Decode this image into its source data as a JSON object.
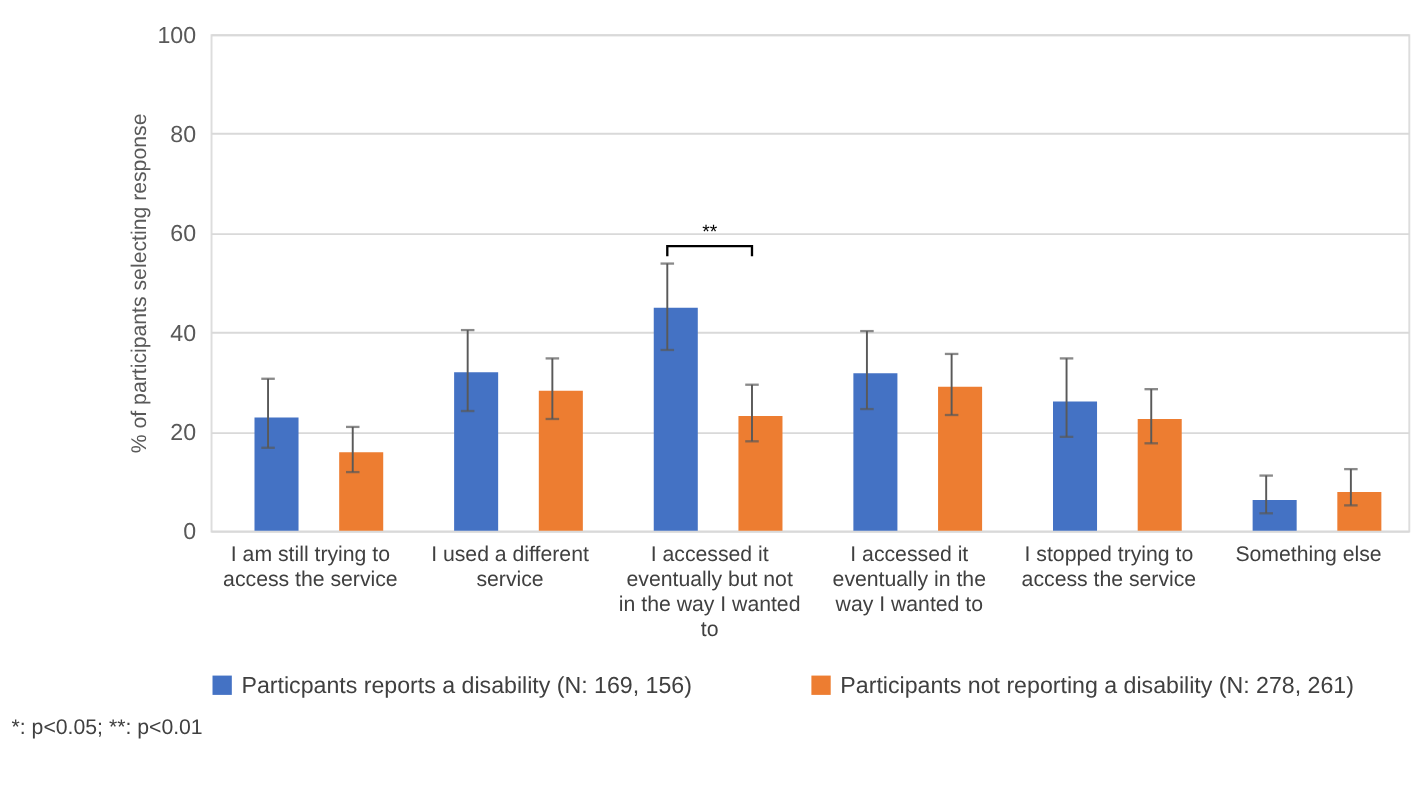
{
  "chart_data": {
    "type": "bar",
    "ylabel": "% of participants selecting response",
    "categories": [
      "I am still trying to access the service",
      "I used a different service",
      "I accessed it eventually but not in the way I wanted to",
      "I accessed it eventually in the way I wanted to",
      "I stopped trying to access the service",
      "Something else"
    ],
    "series": [
      {
        "name": "Particpants reports a disability (N: 169, 156)",
        "color": "#4472c4",
        "values": [
          22.8,
          31.9,
          44.9,
          31.7,
          26.0,
          6.2
        ],
        "errors": [
          [
            16.7,
            30.6
          ],
          [
            24.1,
            40.4
          ],
          [
            36.4,
            53.8
          ],
          [
            24.5,
            40.2
          ],
          [
            18.9,
            34.7
          ],
          [
            3.5,
            11.1
          ]
        ]
      },
      {
        "name": "Participants not reporting a disability (N: 278, 261)",
        "color": "#ed7d31",
        "values": [
          15.8,
          28.2,
          23.1,
          29.0,
          22.5,
          7.8
        ],
        "errors": [
          [
            11.8,
            20.9
          ],
          [
            22.5,
            34.7
          ],
          [
            18.0,
            29.4
          ],
          [
            23.3,
            35.6
          ],
          [
            17.6,
            28.5
          ],
          [
            5.1,
            12.4
          ]
        ]
      }
    ],
    "ylim": [
      0,
      100
    ],
    "yticks": [
      0,
      20,
      40,
      60,
      80,
      100
    ],
    "grid": "y",
    "legend": "bottom",
    "annotations": [
      "**",
      "*: p<0.05; **: p<0.01"
    ]
  }
}
